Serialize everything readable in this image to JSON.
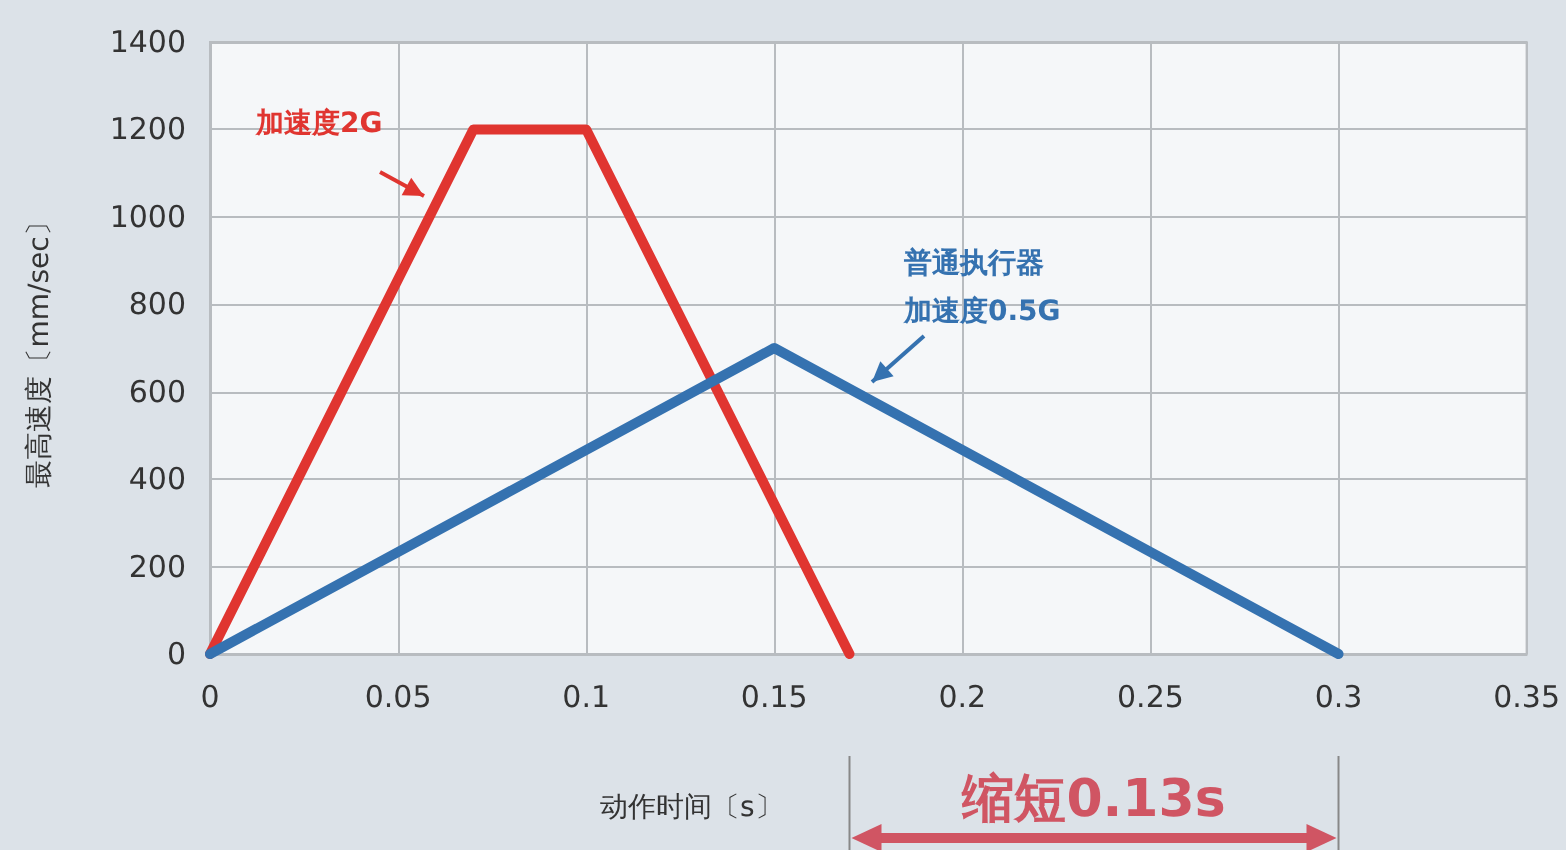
{
  "chart_data": {
    "type": "line",
    "xlabel": "动作时间〔s〕",
    "ylabel": "最高速度〔mm/sec〕",
    "xlim": [
      0,
      0.35
    ],
    "xticks": [
      0,
      0.05,
      0.1,
      0.15,
      0.2,
      0.25,
      0.3,
      0.35
    ],
    "ylim": [
      0,
      1400
    ],
    "yticks": [
      0,
      200,
      400,
      600,
      800,
      1000,
      1200,
      1400
    ],
    "grid": true,
    "marker": "none",
    "line_style": "solid",
    "series": [
      {
        "color": "#e03530",
        "x": [
          0,
          0.07,
          0.1,
          0.17
        ],
        "values": [
          0,
          1200,
          1200,
          0
        ]
      },
      {
        "color": "#3572b0",
        "x": [
          0,
          0.15,
          0.3
        ],
        "values": [
          0,
          700,
          0
        ]
      }
    ],
    "annotations": [
      "加速度2G",
      "普通执行器",
      "加速度0.5G",
      "缩短0.13s"
    ]
  }
}
